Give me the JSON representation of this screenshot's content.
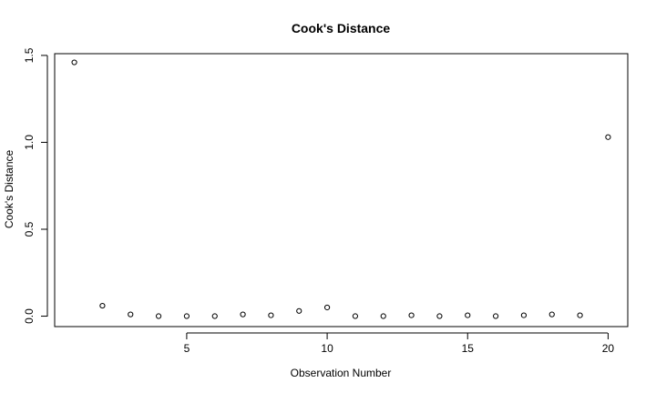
{
  "chart_data": {
    "type": "scatter",
    "title": "Cook's Distance",
    "xlabel": "Observation Number",
    "ylabel": "Cook's Distance",
    "xlim": [
      0.3,
      20.7
    ],
    "ylim": [
      -0.06,
      1.51
    ],
    "x_ticks": [
      5,
      10,
      15,
      20
    ],
    "y_ticks": [
      0.0,
      0.5,
      1.0,
      1.5
    ],
    "x_tick_labels": [
      "5",
      "10",
      "15",
      "20"
    ],
    "y_tick_labels": [
      "0.0",
      "0.5",
      "1.0",
      "1.5"
    ],
    "grid": false,
    "marker": "open-circle",
    "points": [
      {
        "x": 1,
        "y": 1.46
      },
      {
        "x": 2,
        "y": 0.06
      },
      {
        "x": 3,
        "y": 0.01
      },
      {
        "x": 4,
        "y": 0.0
      },
      {
        "x": 5,
        "y": 0.0
      },
      {
        "x": 6,
        "y": 0.0
      },
      {
        "x": 7,
        "y": 0.01
      },
      {
        "x": 8,
        "y": 0.005
      },
      {
        "x": 9,
        "y": 0.03
      },
      {
        "x": 10,
        "y": 0.05
      },
      {
        "x": 11,
        "y": 0.0
      },
      {
        "x": 12,
        "y": 0.0
      },
      {
        "x": 13,
        "y": 0.005
      },
      {
        "x": 14,
        "y": 0.0
      },
      {
        "x": 15,
        "y": 0.005
      },
      {
        "x": 16,
        "y": 0.0
      },
      {
        "x": 17,
        "y": 0.005
      },
      {
        "x": 18,
        "y": 0.01
      },
      {
        "x": 19,
        "y": 0.005
      },
      {
        "x": 20,
        "y": 1.03
      }
    ]
  }
}
